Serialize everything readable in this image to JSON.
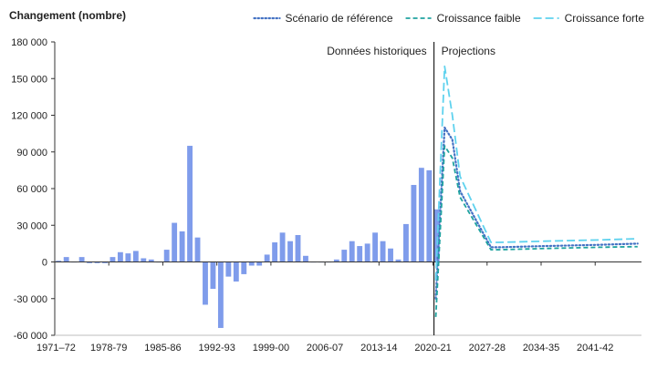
{
  "colors": {
    "bars": "#7f9ceb",
    "reference": "#4472c4",
    "low": "#20a3a0",
    "high": "#5fd2ee",
    "axis": "#333333",
    "divider": "#222222"
  },
  "chart_data": {
    "type": "bar",
    "ylabel": "Changement (nombre)",
    "ylim": [
      -60000,
      180000
    ],
    "yticks": [
      -60000,
      -30000,
      0,
      30000,
      60000,
      90000,
      120000,
      150000,
      180000
    ],
    "ytick_labels": [
      "-60 000",
      "-30 000",
      "0",
      "30 000",
      "60 000",
      "90 000",
      "120 000",
      "150 000",
      "180 000"
    ],
    "x_tick_labels": [
      "1971–72",
      "1978-79",
      "1985-86",
      "1992-93",
      "1999-00",
      "2006-07",
      "2013-14",
      "2020-21",
      "2027-28",
      "2034-35",
      "2041-42"
    ],
    "x_tick_index": [
      0,
      7,
      14,
      21,
      28,
      35,
      42,
      49,
      56,
      63,
      70
    ],
    "num_periods": 76,
    "divider_index": 49,
    "region_labels": {
      "historical": "Données historiques",
      "projection": "Projections"
    },
    "historical": {
      "name": "Données historiques",
      "start_index": 0,
      "values": [
        1000,
        4000,
        0,
        4000,
        -1000,
        -1000,
        -1000,
        4000,
        8000,
        7000,
        9000,
        3000,
        2000,
        0,
        10000,
        32000,
        25000,
        95000,
        20000,
        -35000,
        -22000,
        -54000,
        -12000,
        -16000,
        -10000,
        -3000,
        -3000,
        6000,
        16000,
        24000,
        17000,
        22000,
        5000,
        0,
        0,
        0,
        2000,
        10000,
        17000,
        13000,
        15000,
        24000,
        17000,
        11000,
        2000,
        31000,
        63000,
        77000,
        75000,
        43000
      ]
    },
    "legend": [
      "Scénario de référence",
      "Croissance faible",
      "Croissance forte"
    ],
    "series": [
      {
        "name": "Scénario de référence",
        "style": "dotted",
        "x_index": [
          49,
          50,
          51,
          52,
          56,
          57,
          63,
          70,
          75
        ],
        "values": [
          -30000,
          110000,
          100000,
          58000,
          12000,
          12000,
          13000,
          14000,
          15000
        ]
      },
      {
        "name": "Croissance faible",
        "style": "dashed",
        "x_index": [
          49,
          50,
          51,
          52,
          56,
          57,
          63,
          70,
          75
        ],
        "values": [
          -45000,
          95000,
          85000,
          53000,
          10000,
          10000,
          11000,
          12000,
          12500
        ]
      },
      {
        "name": "Croissance forte",
        "style": "longdash",
        "x_index": [
          49,
          50,
          51,
          52,
          56,
          57,
          63,
          70,
          75
        ],
        "values": [
          -15000,
          160000,
          120000,
          70000,
          16000,
          16000,
          17000,
          18000,
          19000
        ]
      }
    ]
  }
}
